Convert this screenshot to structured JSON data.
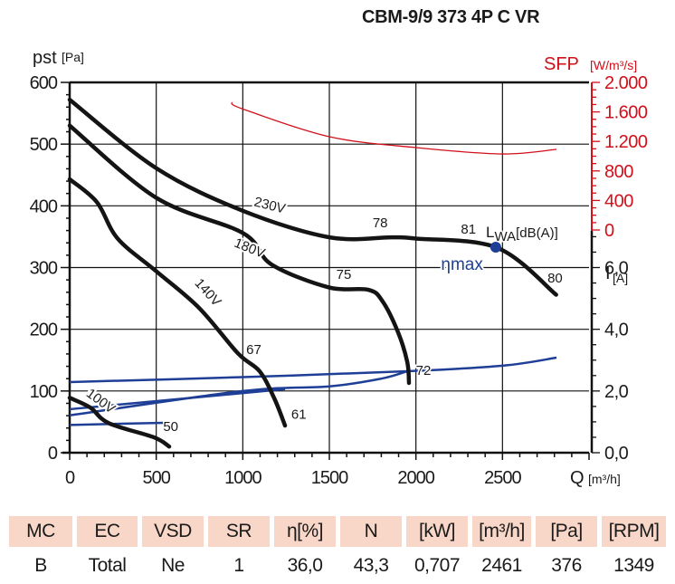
{
  "title": "CBM-9/9 373 4P C VR",
  "chart_data": {
    "type": "line",
    "title": "CBM-9/9 373 4P C VR",
    "xlabel": "Q",
    "xunit": "[m³/h]",
    "xlim": [
      0,
      3000
    ],
    "xticks": [
      0,
      500,
      1000,
      1500,
      2000,
      2500
    ],
    "xtick_labels": [
      "0",
      "500",
      "1000",
      "1500",
      "2000",
      "2500"
    ],
    "ylabel": "pst",
    "yunit": "[Pa]",
    "ylim": [
      0,
      600
    ],
    "yticks": [
      0,
      100,
      200,
      300,
      400,
      500,
      600
    ],
    "ytick_labels": [
      "0",
      "100",
      "200",
      "300",
      "400",
      "500",
      "600"
    ],
    "sfp_axis": {
      "label": "SFP",
      "unit": "[W/m³/s]",
      "range": [
        0,
        2000
      ],
      "ticks": [
        0,
        400,
        800,
        1200,
        1600,
        2000
      ],
      "tick_labels": [
        "0",
        "400",
        "800",
        "1.200",
        "1.600",
        "2.000"
      ],
      "color": "#d0101a"
    },
    "current_axis": {
      "label": "I",
      "unit": "[A]",
      "range": [
        0,
        12
      ],
      "ticks": [
        0,
        2,
        4,
        6
      ],
      "tick_labels": [
        "0,0",
        "2,0",
        "4,0",
        "6,0"
      ]
    },
    "grid": true,
    "pressure_series": [
      {
        "name": "230V",
        "points": [
          [
            0,
            572
          ],
          [
            500,
            461
          ],
          [
            1000,
            392
          ],
          [
            1500,
            349
          ],
          [
            1860,
            349
          ],
          [
            2000,
            347
          ],
          [
            2470,
            332
          ],
          [
            2810,
            256
          ]
        ]
      },
      {
        "name": "180V",
        "points": [
          [
            0,
            530
          ],
          [
            500,
            413
          ],
          [
            1000,
            356
          ],
          [
            1166,
            305
          ],
          [
            1495,
            268
          ],
          [
            1725,
            264
          ],
          [
            1808,
            245
          ],
          [
            1897,
            195
          ],
          [
            1950,
            147
          ],
          [
            1960,
            113
          ]
        ]
      },
      {
        "name": "140V",
        "points": [
          [
            0,
            443
          ],
          [
            157,
            406
          ],
          [
            277,
            347
          ],
          [
            500,
            294
          ],
          [
            746,
            235
          ],
          [
            972,
            161
          ],
          [
            1097,
            132
          ],
          [
            1182,
            88
          ],
          [
            1244,
            44
          ]
        ]
      },
      {
        "name": "100V",
        "points": [
          [
            0,
            89
          ],
          [
            120,
            73
          ],
          [
            225,
            48
          ],
          [
            486,
            25
          ],
          [
            575,
            10
          ]
        ]
      }
    ],
    "sfp_series": {
      "name": "SFP",
      "points": [
        [
          935,
          1730
        ],
        [
          1000,
          1640
        ],
        [
          1500,
          1264
        ],
        [
          2000,
          1117
        ],
        [
          2500,
          1030
        ],
        [
          2812,
          1092
        ]
      ]
    },
    "current_series": [
      {
        "name": "I 230V",
        "points": [
          [
            0,
            2.29
          ],
          [
            1000,
            2.45
          ],
          [
            1950,
            2.64
          ],
          [
            2500,
            2.82
          ],
          [
            2812,
            3.08
          ]
        ]
      },
      {
        "name": "I 180V",
        "points": [
          [
            0,
            1.21
          ],
          [
            1000,
            2.0
          ],
          [
            1500,
            2.15
          ],
          [
            1800,
            2.4
          ],
          [
            1950,
            2.64
          ]
        ]
      },
      {
        "name": "I 140V",
        "points": [
          [
            0,
            1.41
          ],
          [
            1244,
            2.06
          ]
        ]
      },
      {
        "name": "I 100V",
        "points": [
          [
            0,
            0.9
          ],
          [
            540,
            0.97
          ]
        ]
      }
    ],
    "curve_labels": [
      {
        "text": "230V",
        "q": 1150,
        "p": 394,
        "angle": 14
      },
      {
        "text": "180V",
        "q": 1030,
        "p": 325,
        "angle": 22
      },
      {
        "text": "140V",
        "q": 780,
        "p": 255,
        "angle": 48
      },
      {
        "text": "100V",
        "q": 165,
        "p": 78,
        "angle": 36
      }
    ],
    "sound_labels": [
      {
        "text": "78",
        "q": 1750,
        "p": 365
      },
      {
        "text": "81",
        "q": 2260,
        "p": 355
      },
      {
        "text": "75",
        "q": 1540,
        "p": 282
      },
      {
        "text": "80",
        "q": 2760,
        "p": 276
      },
      {
        "text": "67",
        "q": 1020,
        "p": 160
      },
      {
        "text": "72",
        "q": 2000,
        "p": 126
      },
      {
        "text": "61",
        "q": 1280,
        "p": 55
      },
      {
        "text": "50",
        "q": 540,
        "p": 35
      }
    ],
    "lwa_label": "LWA[dB(A)]",
    "eta_max": {
      "label": "ηmax",
      "q": 2461,
      "p": 333,
      "color": "#1f3f96"
    }
  },
  "table": {
    "headers": [
      "MC",
      "EC",
      "VSD",
      "SR",
      "η[%]",
      "N",
      "[kW]",
      "[m³/h]",
      "[Pa]",
      "[RPM]"
    ],
    "values": [
      "B",
      "Total",
      "Ne",
      "1",
      "36,0",
      "43,3",
      "0,707",
      "2461",
      "376",
      "1349"
    ]
  }
}
